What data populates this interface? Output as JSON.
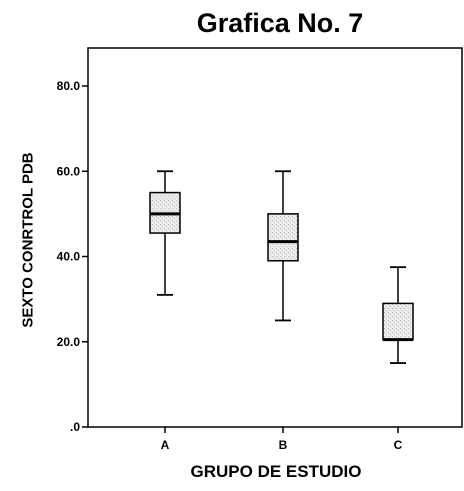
{
  "chart_data": {
    "type": "box",
    "title": "Grafica No. 7",
    "xlabel": "GRUPO DE ESTUDIO",
    "ylabel": "SEXTO CONRTROL PDB",
    "ylim": [
      0,
      80
    ],
    "yticks": [
      0,
      20,
      40,
      60,
      80
    ],
    "ytick_labels": [
      ".0",
      "20.0",
      "40.0",
      "60.0",
      "80.0"
    ],
    "categories": [
      "A",
      "B",
      "C"
    ],
    "boxes": [
      {
        "category": "A",
        "min": 31,
        "q1": 45.5,
        "median": 50,
        "q3": 55,
        "max": 60
      },
      {
        "category": "B",
        "min": 25,
        "q1": 39,
        "median": 43.5,
        "q3": 50,
        "max": 60
      },
      {
        "category": "C",
        "min": 15,
        "q1": 20.5,
        "median": 20.5,
        "q3": 29,
        "max": 37.5
      }
    ],
    "grid": false,
    "box_fill": "#e6e6e6",
    "line_color": "#000000"
  }
}
